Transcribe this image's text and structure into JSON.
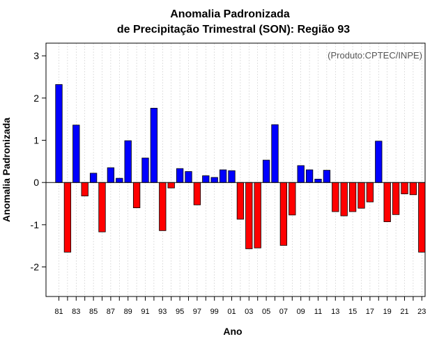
{
  "chart_data": {
    "type": "bar",
    "title_line1": "Anomalia Padronizada",
    "title_line2": "de Precipitação Trimestral (SON): Região 93",
    "xlabel": "Ano",
    "ylabel": "Anomalia Padronizada",
    "credit": "(Produto:CPTEC/INPE)",
    "ylim": [
      -2.7,
      3.3
    ],
    "yticks": [
      "-2",
      "-1",
      "0",
      "1",
      "2",
      "3"
    ],
    "ytick_values": [
      -2,
      -1,
      0,
      1,
      2,
      3
    ],
    "categories": [
      "81",
      "82",
      "83",
      "84",
      "85",
      "86",
      "87",
      "88",
      "89",
      "90",
      "91",
      "92",
      "93",
      "94",
      "95",
      "96",
      "97",
      "98",
      "99",
      "00",
      "01",
      "02",
      "03",
      "04",
      "05",
      "06",
      "07",
      "08",
      "09",
      "10",
      "11",
      "12",
      "13",
      "14",
      "15",
      "16",
      "17",
      "18",
      "19",
      "20",
      "21",
      "22",
      "23"
    ],
    "xtick_labels": [
      "81",
      "83",
      "85",
      "87",
      "89",
      "91",
      "93",
      "95",
      "97",
      "99",
      "01",
      "03",
      "05",
      "07",
      "09",
      "11",
      "13",
      "15",
      "17",
      "19",
      "21",
      "23"
    ],
    "values": [
      2.32,
      -1.65,
      1.36,
      -0.32,
      0.22,
      -1.17,
      0.35,
      0.1,
      0.99,
      -0.6,
      0.58,
      1.76,
      -1.14,
      -0.13,
      0.33,
      0.26,
      -0.53,
      0.16,
      0.12,
      0.3,
      0.28,
      -0.87,
      -1.57,
      -1.55,
      0.53,
      1.37,
      -1.49,
      -0.77,
      0.4,
      0.3,
      0.08,
      0.29,
      -0.69,
      -0.79,
      -0.69,
      -0.61,
      -0.46,
      0.98,
      -0.93,
      -0.76,
      -0.27,
      -0.29,
      -1.65
    ],
    "colors": {
      "positive": "#0000ff",
      "negative": "#ff0000",
      "grid": "#cccccc"
    },
    "grid": true
  }
}
